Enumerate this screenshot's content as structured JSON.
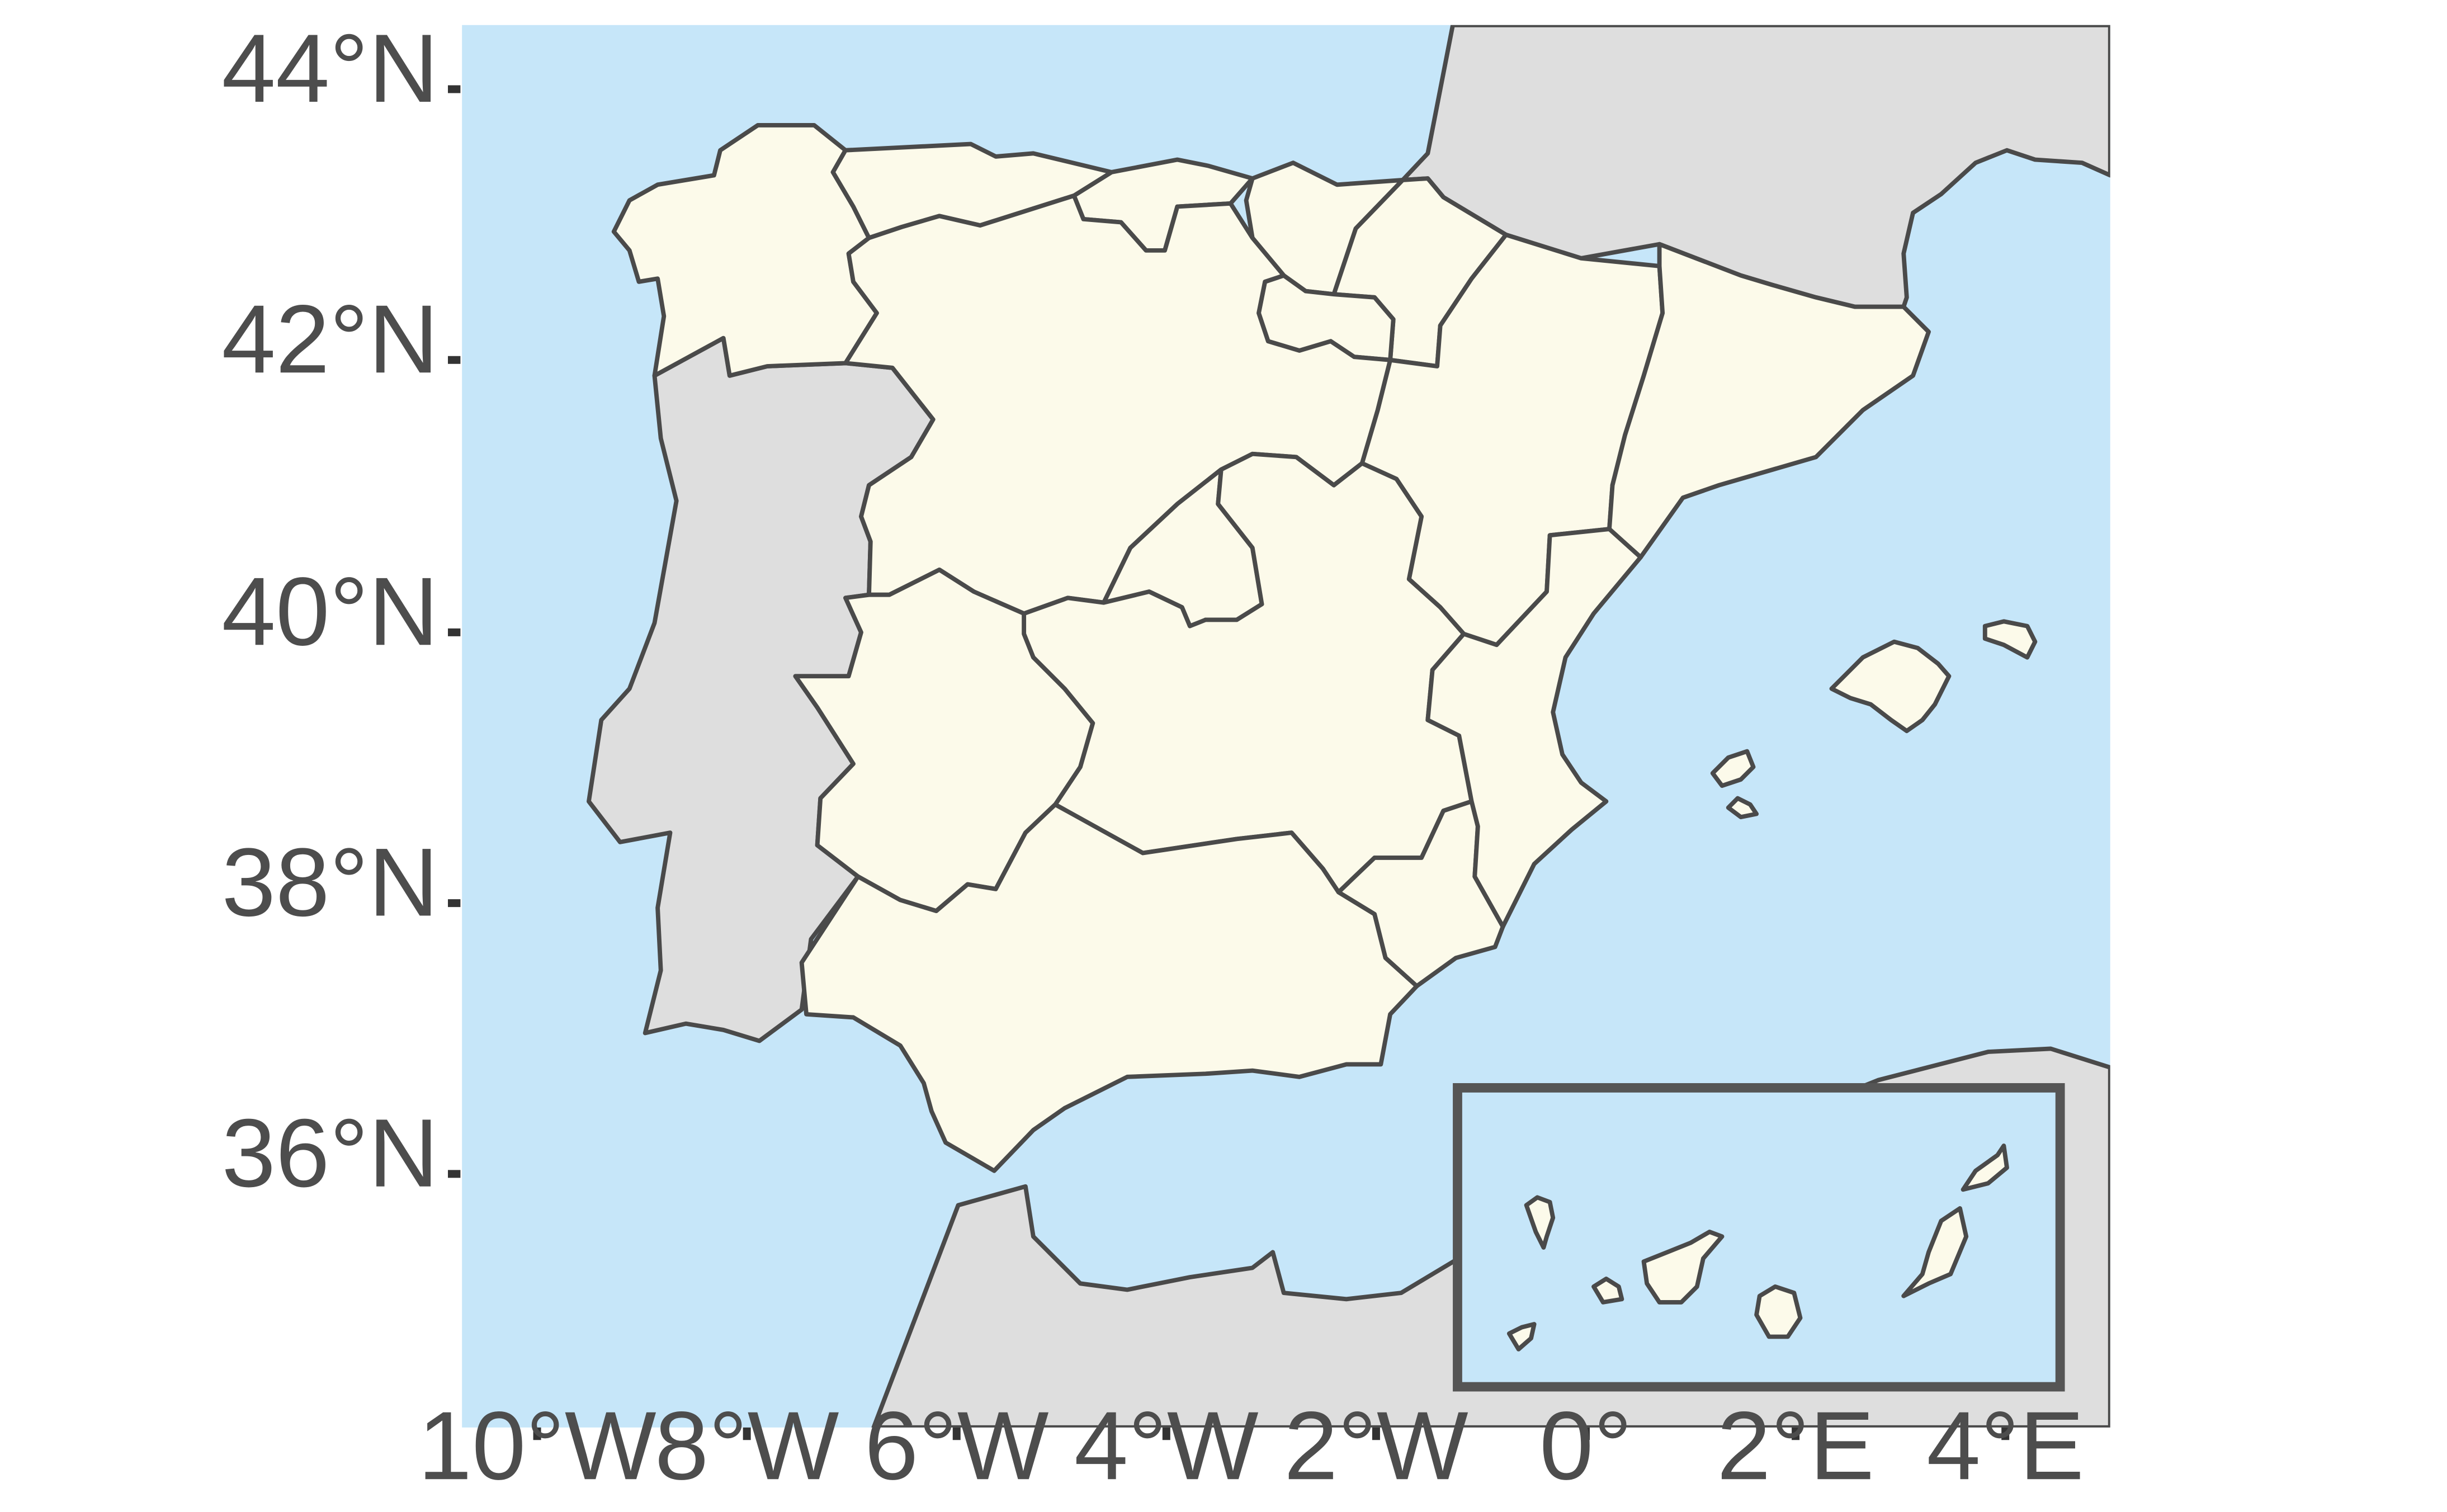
{
  "map": {
    "colors": {
      "sea": "#c6e6f9",
      "land_other": "#dedede",
      "spain_regions": "#fcfaea",
      "borders": "#4a4a4a",
      "inset_frame": "#555555",
      "axis_text": "#4d4d4d"
    },
    "y_axis": {
      "labels": [
        "44°N",
        "42°N",
        "40°N",
        "38°N",
        "36°N"
      ]
    },
    "x_axis": {
      "labels": [
        "10°W",
        "8°W",
        "6°W",
        "4°W",
        "2°W",
        "0°",
        "2°E",
        "4°E"
      ]
    },
    "inset": {
      "content": "Canary Islands"
    }
  }
}
